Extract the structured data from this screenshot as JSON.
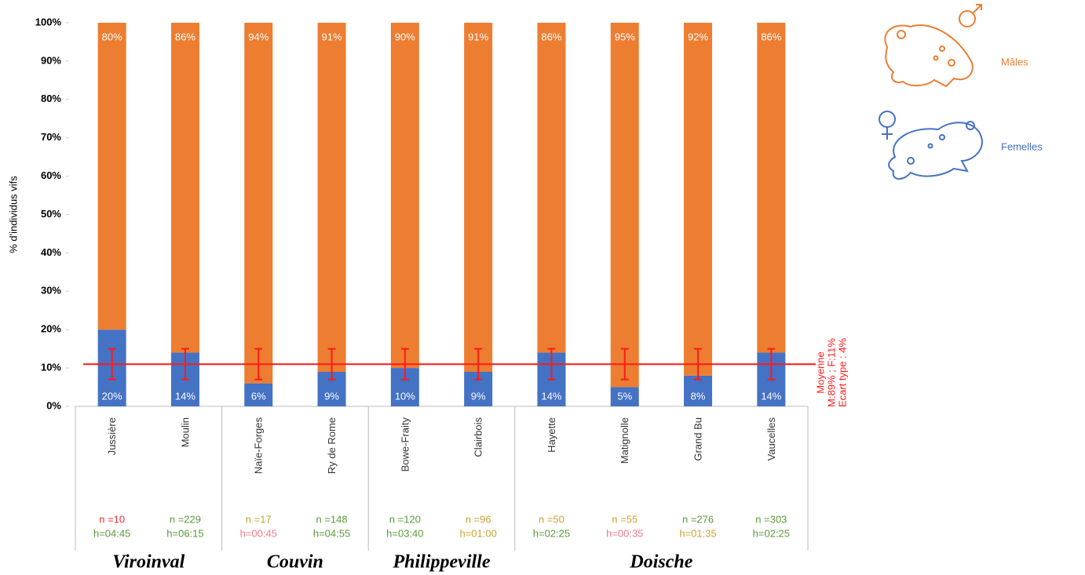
{
  "chart_data": {
    "type": "stacked_bar",
    "y_label": "% d'individus vifs",
    "categories": [
      "Jussière",
      "Moulin",
      "Naïe-Forges",
      "Ry de Rome",
      "Bowe-Fraity",
      "Clairbois",
      "Hayette",
      "Matignolle",
      "Grand Bu",
      "Vaucelles"
    ],
    "category_groups": [
      "Viroinval",
      "Viroinval",
      "Couvin",
      "Couvin",
      "Philippeville",
      "Philippeville",
      "Doische",
      "Doische",
      "Doische",
      "Doische"
    ],
    "series": [
      {
        "name": "Mâles",
        "color": "#ed7d31",
        "values": [
          80,
          86,
          94,
          91,
          90,
          91,
          86,
          95,
          92,
          86
        ],
        "value_labels": [
          "80%",
          "86%",
          "94%",
          "91%",
          "90%",
          "91%",
          "86%",
          "95%",
          "92%",
          "86%"
        ]
      },
      {
        "name": "Femelles",
        "color": "#4472c4",
        "values": [
          20,
          14,
          6,
          9,
          10,
          9,
          14,
          5,
          8,
          14
        ],
        "value_labels": [
          "20%",
          "14%",
          "6%",
          "9%",
          "10%",
          "9%",
          "14%",
          "5%",
          "8%",
          "14%"
        ]
      }
    ],
    "n_labels": [
      {
        "text": "n =10",
        "color": "#e8322e"
      },
      {
        "text": "n =229",
        "color": "#5a9a3a"
      },
      {
        "text": "n =17",
        "color": "#c9a230"
      },
      {
        "text": "n =148",
        "color": "#5a9a3a"
      },
      {
        "text": "n =120",
        "color": "#5a9a3a"
      },
      {
        "text": "n =96",
        "color": "#c9a230"
      },
      {
        "text": "n =50",
        "color": "#c9a230"
      },
      {
        "text": "n =55",
        "color": "#c9a230"
      },
      {
        "text": "n =276",
        "color": "#5a9a3a"
      },
      {
        "text": "n =303",
        "color": "#5a9a3a"
      }
    ],
    "h_labels": [
      {
        "text": "h=04:45",
        "color": "#5a9a3a"
      },
      {
        "text": "h=06:15",
        "color": "#5a9a3a"
      },
      {
        "text": "h=00:45",
        "color": "#f07a8a"
      },
      {
        "text": "h=04:55",
        "color": "#5a9a3a"
      },
      {
        "text": "h=03:40",
        "color": "#5a9a3a"
      },
      {
        "text": "h=01:00",
        "color": "#c9a230"
      },
      {
        "text": "h=02:25",
        "color": "#5a9a3a"
      },
      {
        "text": "h=00:35",
        "color": "#f07a8a"
      },
      {
        "text": "h=01:35",
        "color": "#c9a230"
      },
      {
        "text": "h=02:25",
        "color": "#5a9a3a"
      }
    ],
    "mean": 11,
    "std": 4,
    "mean_color": "#ff1a1a",
    "annotation_lines": [
      "Moyenne",
      "M:89% ; F:11%",
      "Ecart type : 4%"
    ],
    "ylim": [
      0,
      100
    ],
    "yticks": [
      {
        "value": 0,
        "label": "0%"
      },
      {
        "value": 10,
        "label": "10%"
      },
      {
        "value": 20,
        "label": "20%"
      },
      {
        "value": 30,
        "label": "30%"
      },
      {
        "value": 40,
        "label": "40%"
      },
      {
        "value": 50,
        "label": "50%"
      },
      {
        "value": 60,
        "label": "60%"
      },
      {
        "value": 70,
        "label": "70%"
      },
      {
        "value": 80,
        "label": "80%"
      },
      {
        "value": 90,
        "label": "90%"
      },
      {
        "value": 100,
        "label": "100%"
      }
    ]
  }
}
